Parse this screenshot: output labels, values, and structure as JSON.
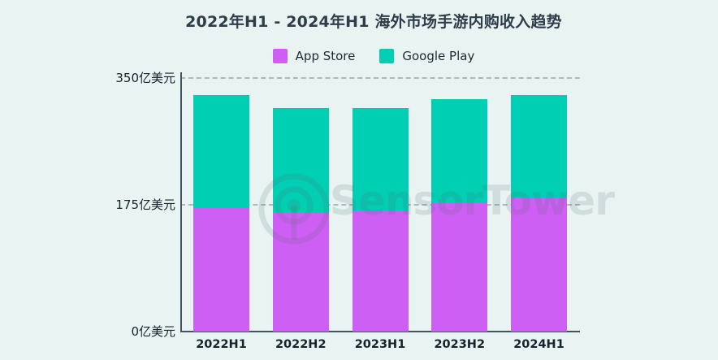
{
  "title": "2022年H1 - 2024年H1 海外市场手游内购收入趋势",
  "watermark": {
    "text": "SensorTower"
  },
  "colors": {
    "background": "#e8f3f2",
    "app_store": "#cd5ff5",
    "google_play": "#00cfb4",
    "title_text": "#2e3d49",
    "axis_line": "#42525a",
    "grid_dash": "#aeb7ba",
    "tick_text": "#15232d",
    "watermark": "rgba(88,104,111,0.16)"
  },
  "chart_data": {
    "type": "bar",
    "stacked": true,
    "title": "2022年H1 - 2024年H1 海外市场手游内购收入趋势",
    "categories": [
      "2022H1",
      "2022H2",
      "2023H1",
      "2023H2",
      "2024H1"
    ],
    "series": [
      {
        "name": "App Store",
        "color": "#cd5ff5",
        "values": [
          170,
          164,
          167,
          178,
          185
        ]
      },
      {
        "name": "Google Play",
        "color": "#00cfb4",
        "values": [
          156,
          144,
          141,
          143,
          141
        ]
      }
    ],
    "unit": "亿美元",
    "ylim": [
      0,
      350
    ],
    "yticks": [
      {
        "value": 350,
        "label": "350亿美元"
      },
      {
        "value": 175,
        "label": "175亿美元"
      },
      {
        "value": 0,
        "label": "0亿美元"
      }
    ],
    "grid": "horizontal dashed at 175 and 350",
    "legend_position": "top-center",
    "xlabel": "",
    "ylabel": ""
  }
}
